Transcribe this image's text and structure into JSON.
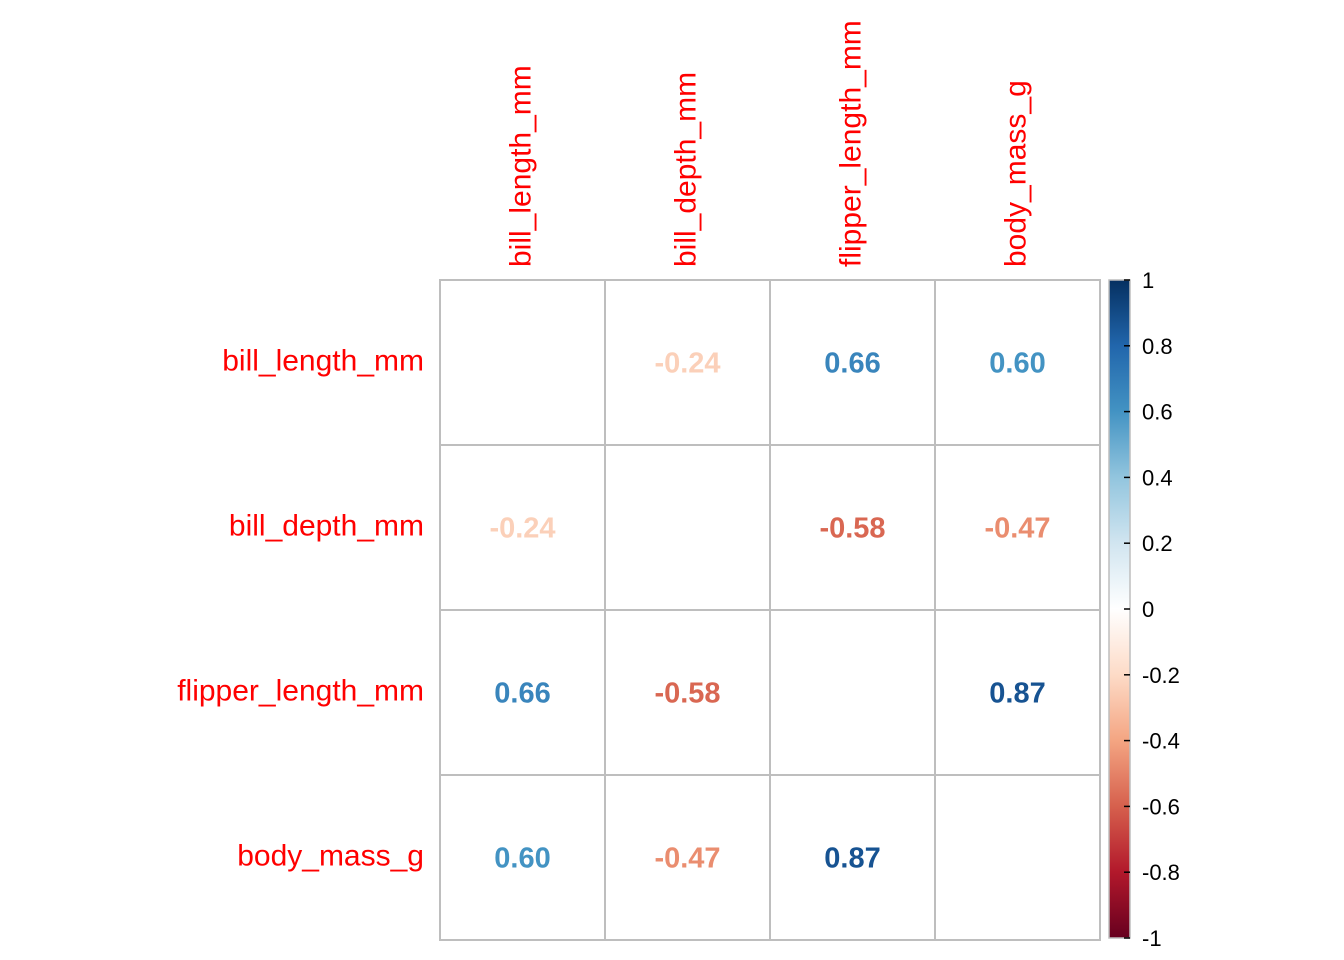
{
  "chart_data": {
    "type": "heatmap",
    "variables": [
      "bill_length_mm",
      "bill_depth_mm",
      "flipper_length_mm",
      "body_mass_g"
    ],
    "matrix": [
      [
        null,
        -0.24,
        0.66,
        0.6
      ],
      [
        -0.24,
        null,
        -0.58,
        -0.47
      ],
      [
        0.66,
        -0.58,
        null,
        0.87
      ],
      [
        0.6,
        -0.47,
        0.87,
        null
      ]
    ],
    "value_labels": [
      [
        "",
        "-0.24",
        "0.66",
        "0.60"
      ],
      [
        "-0.24",
        "",
        "-0.58",
        "-0.47"
      ],
      [
        "0.66",
        "-0.58",
        "",
        "0.87"
      ],
      [
        "0.60",
        "-0.47",
        "0.87",
        ""
      ]
    ],
    "colorbar": {
      "range": [
        -1,
        1
      ],
      "ticks": [
        1,
        0.8,
        0.6,
        0.4,
        0.2,
        0,
        -0.2,
        -0.4,
        -0.6,
        -0.8,
        -1
      ],
      "tick_labels": [
        "1",
        "0.8",
        "0.6",
        "0.4",
        "0.2",
        "0",
        "-0.2",
        "-0.4",
        "-0.6",
        "-0.8",
        "-1"
      ]
    },
    "palette": [
      "#67001F",
      "#B2182B",
      "#D6604D",
      "#F4A582",
      "#FDDBC7",
      "#FFFFFF",
      "#D1E5F0",
      "#92C5DE",
      "#4393C3",
      "#2166AC",
      "#053061"
    ],
    "label_color": "#FF0000",
    "grid_color": "#BEBEBE",
    "grid": true
  }
}
